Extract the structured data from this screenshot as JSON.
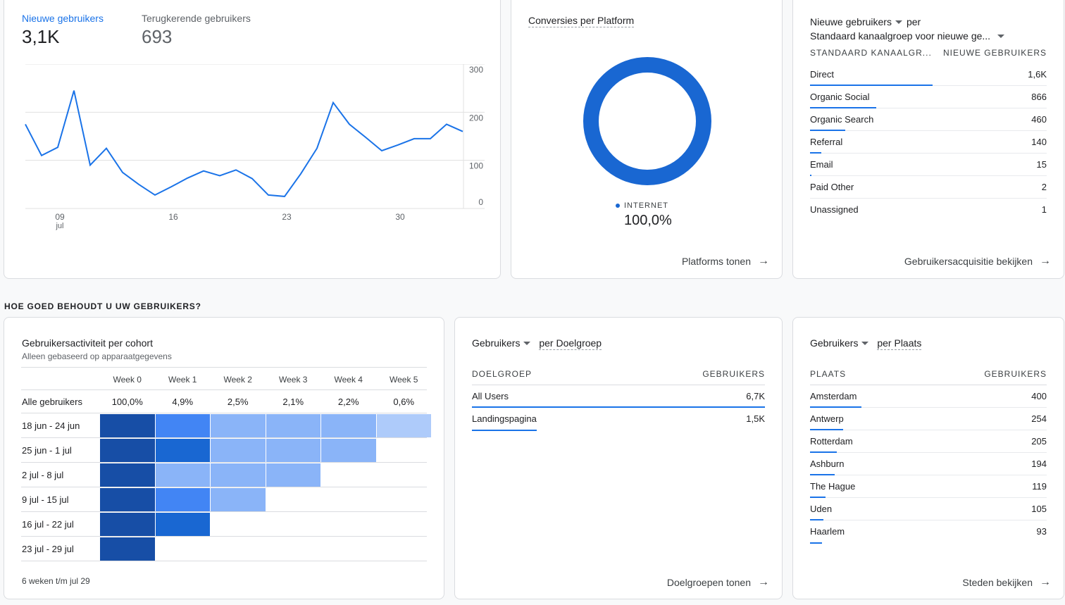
{
  "overview": {
    "metrics": [
      {
        "label": "Nieuwe gebruikers",
        "value": "3,1K"
      },
      {
        "label": "Terugkerende gebruikers",
        "value": "693"
      }
    ],
    "y_ticks": [
      "300",
      "200",
      "100",
      "0"
    ],
    "x_ticks": [
      "09",
      "16",
      "23",
      "30"
    ],
    "x_month": "jul"
  },
  "chart_data": {
    "type": "line",
    "series": [
      {
        "values": [
          175,
          110,
          127,
          245,
          90,
          125,
          75,
          50,
          28,
          45,
          63,
          78,
          68,
          80,
          62,
          28,
          25,
          72,
          125,
          220,
          175,
          148,
          120,
          132,
          145,
          145,
          175,
          160
        ]
      }
    ],
    "ylim": [
      0,
      300
    ],
    "x_ticks": [
      "09 jul",
      "16",
      "23",
      "30"
    ],
    "y_ticks": [
      0,
      100,
      200,
      300
    ]
  },
  "platform": {
    "title": "Conversies per Platform",
    "legend_label": "INTERNET",
    "legend_value": "100,0%",
    "link": "Platforms tonen",
    "color": "#1967d2"
  },
  "acquisition": {
    "metric": "Nieuwe gebruikers",
    "per": "per",
    "dimension": "Standaard kanaalgroep voor nieuwe ge...",
    "col1": "STANDAARD KANAALGR...",
    "col2": "NIEUWE GEBRUIKERS",
    "rows": [
      {
        "label": "Direct",
        "value": "1,6K",
        "pct": 100
      },
      {
        "label": "Organic Social",
        "value": "866",
        "pct": 54
      },
      {
        "label": "Organic Search",
        "value": "460",
        "pct": 29
      },
      {
        "label": "Referral",
        "value": "140",
        "pct": 9
      },
      {
        "label": "Email",
        "value": "15",
        "pct": 1
      },
      {
        "label": "Paid Other",
        "value": "2",
        "pct": 0
      },
      {
        "label": "Unassigned",
        "value": "1",
        "pct": 0
      }
    ],
    "link": "Gebruikersacquisitie bekijken"
  },
  "section_title": "HOE GOED BEHOUDT U UW GEBRUIKERS?",
  "cohort": {
    "title": "Gebruikersactiviteit per cohort",
    "subtitle": "Alleen gebaseerd op apparaatgegevens",
    "weeks": [
      "Week 0",
      "Week 1",
      "Week 2",
      "Week 3",
      "Week 4",
      "Week 5"
    ],
    "all_label": "Alle gebruikers",
    "all_values": [
      "100,0%",
      "4,9%",
      "2,5%",
      "2,1%",
      "2,2%",
      "0,6%"
    ],
    "rows": [
      {
        "label": "18 jun - 24 jun",
        "cells": [
          "#174ea6",
          "#4285f4",
          "#8ab4f8",
          "#8ab4f8",
          "#8ab4f8",
          "#aecbfa"
        ]
      },
      {
        "label": "25 jun - 1 jul",
        "cells": [
          "#174ea6",
          "#1967d2",
          "#8ab4f8",
          "#8ab4f8",
          "#8ab4f8"
        ]
      },
      {
        "label": "2 jul - 8 jul",
        "cells": [
          "#174ea6",
          "#8ab4f8",
          "#8ab4f8",
          "#8ab4f8"
        ]
      },
      {
        "label": "9 jul - 15 jul",
        "cells": [
          "#174ea6",
          "#4285f4",
          "#8ab4f8"
        ]
      },
      {
        "label": "16 jul - 22 jul",
        "cells": [
          "#174ea6",
          "#1967d2"
        ]
      },
      {
        "label": "23 jul - 29 jul",
        "cells": [
          "#174ea6"
        ]
      }
    ],
    "footer": "6 weken t/m jul 29"
  },
  "audience": {
    "metric": "Gebruikers",
    "per": "per Doelgroep",
    "col1": "DOELGROEP",
    "col2": "GEBRUIKERS",
    "rows": [
      {
        "label": "All Users",
        "value": "6,7K",
        "pct": 100
      },
      {
        "label": "Landingspagina",
        "value": "1,5K",
        "pct": 22
      }
    ],
    "link": "Doelgroepen tonen"
  },
  "city": {
    "metric": "Gebruikers",
    "per": "per Plaats",
    "col1": "PLAATS",
    "col2": "GEBRUIKERS",
    "rows": [
      {
        "label": "Amsterdam",
        "value": "400",
        "pct": 6.6
      },
      {
        "label": "Antwerp",
        "value": "254",
        "pct": 4.2
      },
      {
        "label": "Rotterdam",
        "value": "205",
        "pct": 3.4
      },
      {
        "label": "Ashburn",
        "value": "194",
        "pct": 3.2
      },
      {
        "label": "The Hague",
        "value": "119",
        "pct": 2.0
      },
      {
        "label": "Uden",
        "value": "105",
        "pct": 1.7
      },
      {
        "label": "Haarlem",
        "value": "93",
        "pct": 1.5
      }
    ],
    "link": "Steden bekijken"
  }
}
